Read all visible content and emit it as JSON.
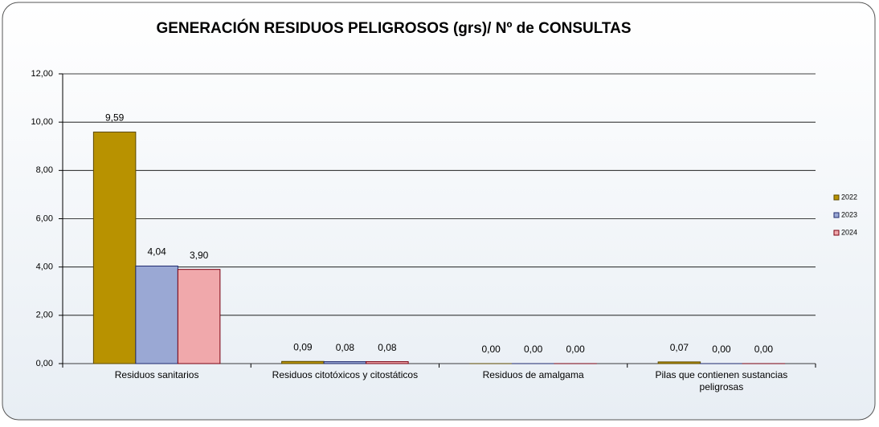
{
  "chart_data": {
    "type": "bar",
    "title": "GENERACIÓN RESIDUOS PELIGROSOS (grs)/ Nº de CONSULTAS",
    "categories": [
      "Residuos sanitarios",
      "Residuos citotóxicos y citostáticos",
      "Residuos de amalgama",
      "Pilas que contienen sustancias peligrosas"
    ],
    "series": [
      {
        "name": "2022",
        "color": "#b89200",
        "values": [
          9.59,
          0.09,
          0,
          0.07
        ],
        "value_labels": [
          "9,59",
          "0,09",
          "0,00",
          "0,07"
        ]
      },
      {
        "name": "2023",
        "color": "#9aa8d4",
        "values": [
          4.04,
          0.08,
          0,
          0
        ],
        "value_labels": [
          "4,04",
          "0,08",
          "0,00",
          "0,00"
        ]
      },
      {
        "name": "2024",
        "color": "#f0a8ab",
        "values": [
          3.9,
          0.08,
          0,
          0
        ],
        "value_labels": [
          "3,90",
          "0,08",
          "0,00",
          "0,00"
        ]
      }
    ],
    "ylim": [
      0,
      12
    ],
    "yticks": [
      {
        "value": 0,
        "label": "0,00"
      },
      {
        "value": 2,
        "label": "2,00"
      },
      {
        "value": 4,
        "label": "4,00"
      },
      {
        "value": 6,
        "label": "6,00"
      },
      {
        "value": 8,
        "label": "8,00"
      },
      {
        "value": 10,
        "label": "10,00"
      },
      {
        "value": 12,
        "label": "12,00"
      }
    ],
    "grid": true,
    "legend": "right"
  }
}
